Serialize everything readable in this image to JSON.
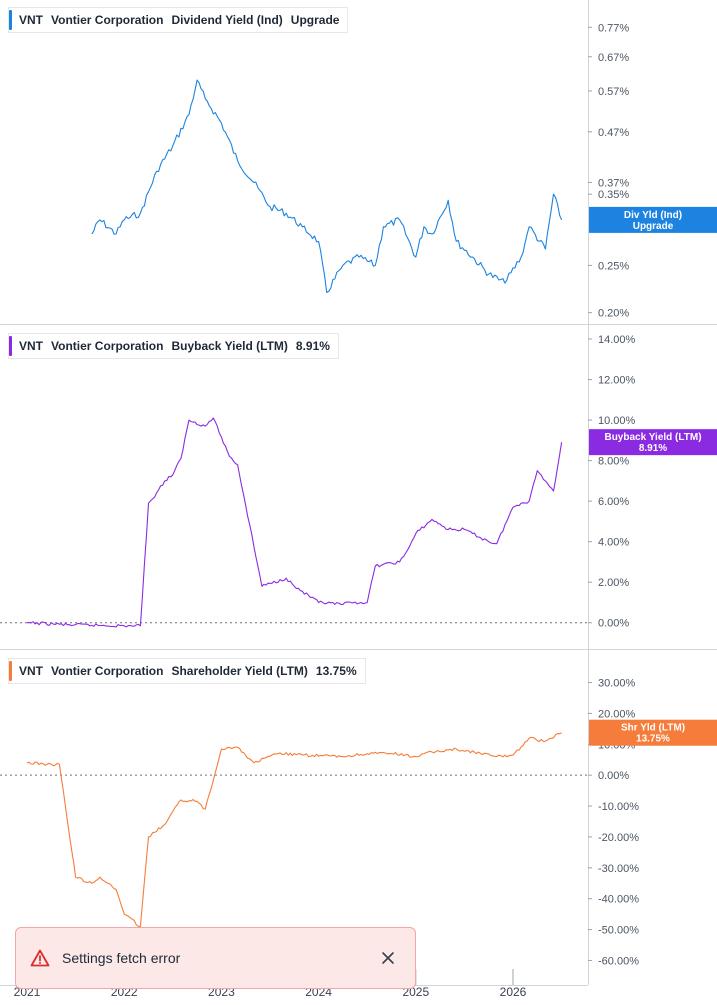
{
  "panels": [
    {
      "ticker": "VNT",
      "company": "Vontier Corporation",
      "metric": "Dividend Yield (Ind)",
      "value": "Upgrade",
      "color": "#1c83e0",
      "tag_lines": [
        "Div Yld (Ind)",
        "Upgrade"
      ]
    },
    {
      "ticker": "VNT",
      "company": "Vontier Corporation",
      "metric": "Buyback Yield (LTM)",
      "value": "8.91%",
      "color": "#8a2be2",
      "tag_lines": [
        "Buyback Yield (LTM)",
        "8.91%"
      ]
    },
    {
      "ticker": "VNT",
      "company": "Vontier Corporation",
      "metric": "Shareholder Yield (LTM)",
      "value": "13.75%",
      "color": "#f57c3a",
      "tag_lines": [
        "Shr Yld (LTM)",
        "13.75%"
      ]
    }
  ],
  "toast": {
    "message": "Settings fetch error",
    "icon": "warning-triangle-icon",
    "close_icon": "close-icon"
  },
  "chart_data": [
    {
      "type": "line",
      "name": "Dividend Yield (Ind)",
      "scale": "log",
      "y_ticks": [
        0.2,
        0.25,
        0.35,
        0.37,
        0.47,
        0.57,
        0.67,
        0.77
      ],
      "y_tick_labels": [
        "0.20%",
        "0.25%",
        "0.35%",
        "0.37%",
        "0.47%",
        "0.57%",
        "0.67%",
        "0.77%"
      ],
      "ylim": [
        0.195,
        0.82
      ],
      "x": [
        "2021-09",
        "2021-10",
        "2021-12",
        "2022-01",
        "2022-03",
        "2022-05",
        "2022-07",
        "2022-09",
        "2022-10",
        "2022-11",
        "2023-01",
        "2023-03",
        "2023-05",
        "2023-07",
        "2023-09",
        "2023-11",
        "2024-01",
        "2024-02",
        "2024-04",
        "2024-06",
        "2024-08",
        "2024-09",
        "2024-11",
        "2025-01",
        "2025-02",
        "2025-03",
        "2025-05",
        "2025-06",
        "2025-08",
        "2025-10",
        "2025-12",
        "2026-02",
        "2026-03",
        "2026-05",
        "2026-06",
        "2026-07"
      ],
      "y": [
        0.29,
        0.31,
        0.29,
        0.31,
        0.32,
        0.39,
        0.44,
        0.51,
        0.6,
        0.55,
        0.49,
        0.41,
        0.37,
        0.33,
        0.32,
        0.3,
        0.28,
        0.22,
        0.25,
        0.26,
        0.25,
        0.3,
        0.31,
        0.26,
        0.3,
        0.29,
        0.34,
        0.28,
        0.26,
        0.24,
        0.23,
        0.26,
        0.3,
        0.27,
        0.35,
        0.31
      ],
      "last_label": [
        "Div Yld (Ind)",
        "Upgrade"
      ]
    },
    {
      "type": "line",
      "name": "Buyback Yield (LTM)",
      "y_ticks": [
        0,
        2,
        4,
        6,
        8,
        10,
        12,
        14
      ],
      "y_tick_labels": [
        "0.00%",
        "2.00%",
        "4.00%",
        "6.00%",
        "8.00%",
        "10.00%",
        "12.00%",
        "14.00%"
      ],
      "ylim": [
        -1.0,
        14.0
      ],
      "x": [
        "2021-01",
        "2021-06",
        "2022-01",
        "2022-03",
        "2022-04",
        "2022-05",
        "2022-06",
        "2022-07",
        "2022-08",
        "2022-09",
        "2022-11",
        "2022-12",
        "2023-02",
        "2023-03",
        "2023-06",
        "2023-09",
        "2023-10",
        "2024-01",
        "2024-04",
        "2024-05",
        "2024-07",
        "2024-08",
        "2024-11",
        "2024-12",
        "2025-01",
        "2025-03",
        "2025-05",
        "2025-07",
        "2025-10",
        "2025-11",
        "2026-01",
        "2026-02",
        "2026-03",
        "2026-04",
        "2026-05",
        "2026-06",
        "2026-07"
      ],
      "y": [
        0.0,
        -0.1,
        -0.15,
        -0.15,
        5.9,
        6.4,
        7.0,
        7.3,
        8.1,
        10.0,
        9.7,
        10.1,
        8.2,
        7.8,
        1.8,
        2.2,
        1.8,
        1.0,
        0.9,
        1.0,
        1.0,
        2.8,
        3.0,
        3.6,
        4.4,
        5.1,
        4.6,
        4.6,
        4.0,
        3.9,
        5.7,
        5.9,
        6.0,
        7.5,
        7.0,
        6.5,
        8.91
      ],
      "last_label": [
        "Buyback Yield (LTM)",
        "8.91%"
      ]
    },
    {
      "type": "line",
      "name": "Shareholder Yield (LTM)",
      "y_ticks": [
        -60,
        -50,
        -40,
        -30,
        -20,
        -10,
        0,
        10,
        20,
        30
      ],
      "y_tick_labels": [
        "-60.00%",
        "-50.00%",
        "-40.00%",
        "-30.00%",
        "-20.00%",
        "-10.00%",
        "0.00%",
        "10.00%",
        "20.00%",
        "30.00%"
      ],
      "ylim": [
        -66,
        36
      ],
      "x": [
        "2021-01",
        "2021-04",
        "2021-05",
        "2021-07",
        "2021-09",
        "2021-10",
        "2021-11",
        "2021-12",
        "2022-01",
        "2022-03",
        "2022-04",
        "2022-06",
        "2022-08",
        "2022-10",
        "2022-11",
        "2023-01",
        "2023-02",
        "2023-03",
        "2023-05",
        "2023-08",
        "2023-11",
        "2024-04",
        "2024-07",
        "2024-10",
        "2025-01",
        "2025-03",
        "2025-06",
        "2025-09",
        "2025-11",
        "2026-01",
        "2026-03",
        "2026-05",
        "2026-07"
      ],
      "y": [
        4,
        3.5,
        3.5,
        -33,
        -35,
        -33,
        -35,
        -37,
        -45,
        -49,
        -20,
        -16,
        -8,
        -8.5,
        -11,
        8.5,
        9,
        9,
        4,
        7,
        6.5,
        6,
        7,
        7,
        6,
        7.5,
        8.5,
        7,
        6,
        6.5,
        12,
        11,
        13.75
      ],
      "last_label": [
        "Shr Yld (LTM)",
        "13.75%"
      ]
    }
  ],
  "x_axis": {
    "tick_labels": [
      "2021",
      "2022",
      "2023",
      "2024",
      "2025",
      "2026"
    ],
    "tick_dates": [
      "2021-01",
      "2022-01",
      "2023-01",
      "2024-01",
      "2025-01",
      "2026-01"
    ]
  }
}
